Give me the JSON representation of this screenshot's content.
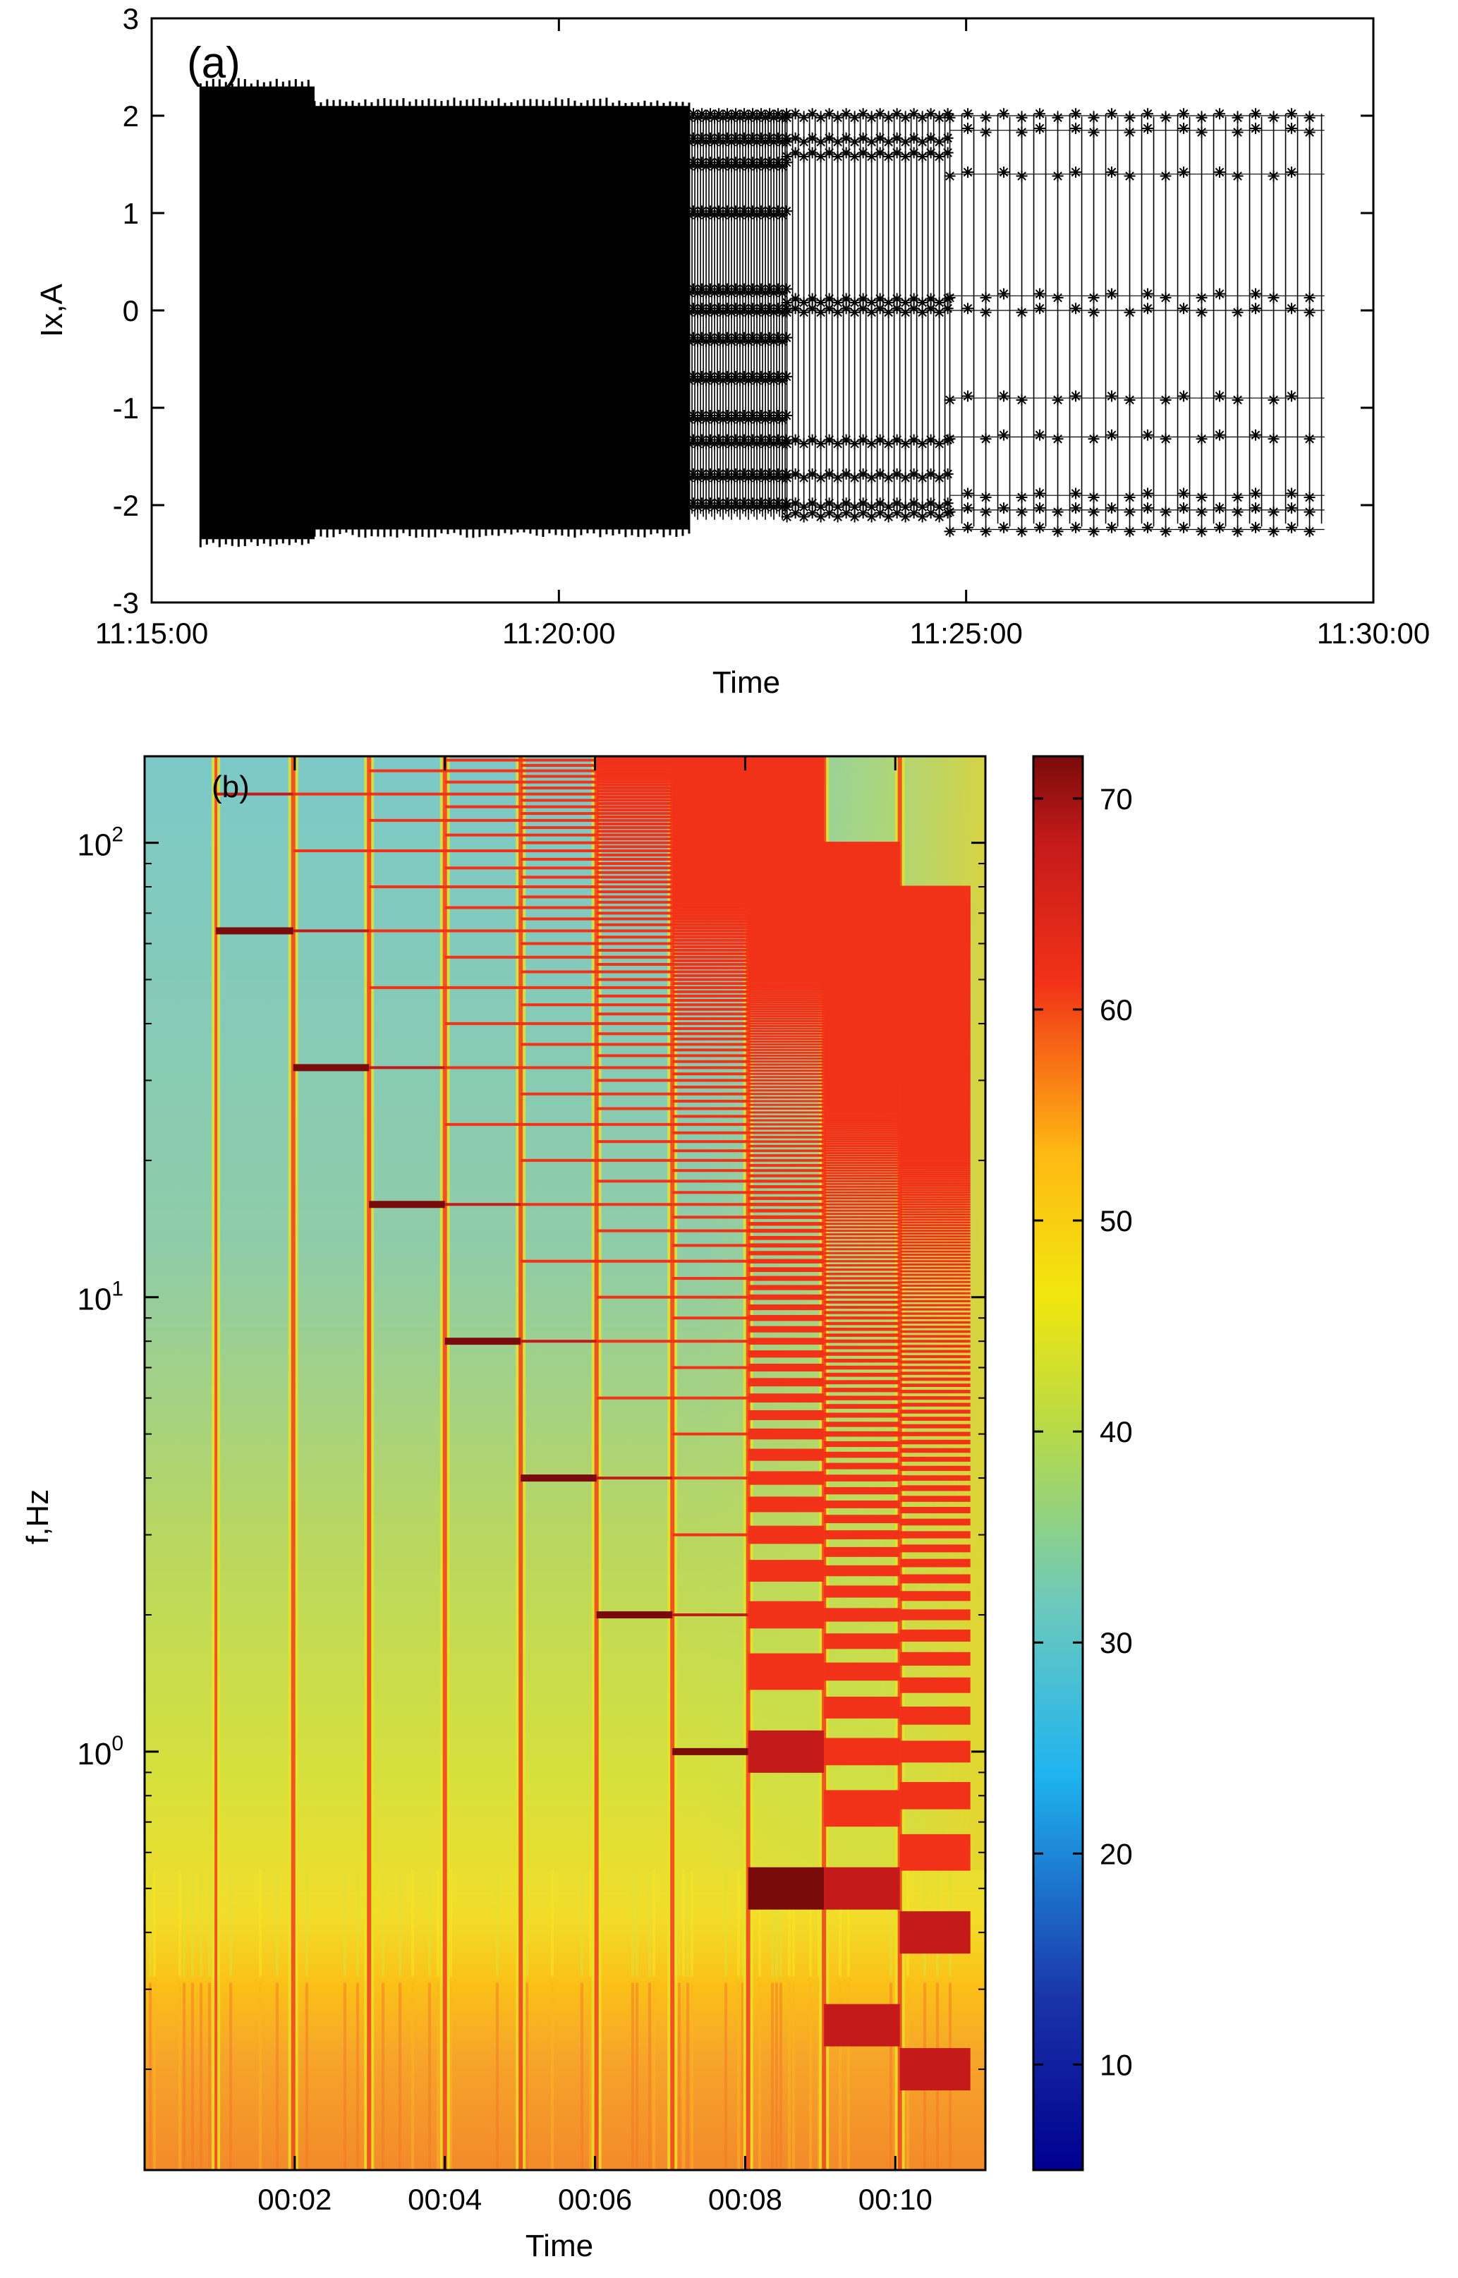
{
  "chart_data": [
    {
      "type": "scatter",
      "panel_label": "(a)",
      "xlabel": "Time",
      "ylabel": "Ix,A",
      "xticks": [
        "11:15:00",
        "11:20:00",
        "11:25:00",
        "11:30:00"
      ],
      "xlim_minutes": [
        0,
        15
      ],
      "yticks": [
        "-3",
        "-2",
        "-1",
        "0",
        "1",
        "2",
        "3"
      ],
      "ylim": [
        -3,
        3
      ],
      "grid": false,
      "marker": "*",
      "color": "#000000",
      "segments": [
        {
          "t_start_min": 0.6,
          "t_end_min": 2.0,
          "y_min": -2.35,
          "y_max": 2.3,
          "density": "solid"
        },
        {
          "t_start_min": 2.0,
          "t_end_min": 6.6,
          "y_min": -2.25,
          "y_max": 2.1,
          "density": "solid"
        },
        {
          "t_start_min": 6.6,
          "t_end_min": 7.8,
          "y_min": -2.15,
          "y_max": 2.05,
          "density": "dense",
          "levels": [
            2.0,
            1.75,
            1.5,
            1.0,
            0.2,
            0.0,
            -0.3,
            -0.7,
            -1.1,
            -1.35,
            -1.7,
            -2.0
          ]
        },
        {
          "t_start_min": 7.8,
          "t_end_min": 9.8,
          "y_min": -2.1,
          "y_max": 2.05,
          "density": "medium",
          "levels": [
            2.0,
            1.75,
            1.6,
            0.1,
            0.0,
            -1.35,
            -1.7,
            -2.0,
            -2.1
          ]
        },
        {
          "t_start_min": 9.8,
          "t_end_min": 14.4,
          "y_min": -2.25,
          "y_max": 2.05,
          "density": "sparse",
          "levels": [
            2.0,
            1.85,
            1.4,
            0.15,
            0.0,
            -0.9,
            -1.3,
            -1.9,
            -2.05,
            -2.25
          ]
        }
      ]
    },
    {
      "type": "heatmap",
      "panel_label": "(b)",
      "xlabel": "Time",
      "ylabel": "f,Hz",
      "xticks": [
        "00:02",
        "00:04",
        "00:06",
        "00:08",
        "00:10"
      ],
      "yticks": [
        {
          "base": "10",
          "exp": "0",
          "value": 1
        },
        {
          "base": "10",
          "exp": "1",
          "value": 10
        },
        {
          "base": "10",
          "exp": "2",
          "value": 100
        }
      ],
      "yscale": "log",
      "ylim": [
        0.12,
        155
      ],
      "colorbar": {
        "ticks": [
          "10",
          "20",
          "30",
          "40",
          "50",
          "60",
          "70"
        ],
        "range": [
          5,
          72
        ],
        "colormap": "jet"
      },
      "sweeps": [
        {
          "start_min": 0.95,
          "end_min": 1.98,
          "f0": 64
        },
        {
          "start_min": 1.98,
          "end_min": 2.99,
          "f0": 32
        },
        {
          "start_min": 2.99,
          "end_min": 4.0,
          "f0": 16
        },
        {
          "start_min": 4.0,
          "end_min": 5.01,
          "f0": 8
        },
        {
          "start_min": 5.01,
          "end_min": 6.02,
          "f0": 4
        },
        {
          "start_min": 6.02,
          "end_min": 7.03,
          "f0": 2
        },
        {
          "start_min": 7.03,
          "end_min": 8.04,
          "f0": 1
        },
        {
          "start_min": 8.04,
          "end_min": 9.05,
          "f0": 0.5
        },
        {
          "start_min": 9.05,
          "end_min": 10.06,
          "f0": 0.25
        },
        {
          "start_min": 10.06,
          "end_min": 11.0,
          "f0": 0.2
        }
      ]
    }
  ]
}
